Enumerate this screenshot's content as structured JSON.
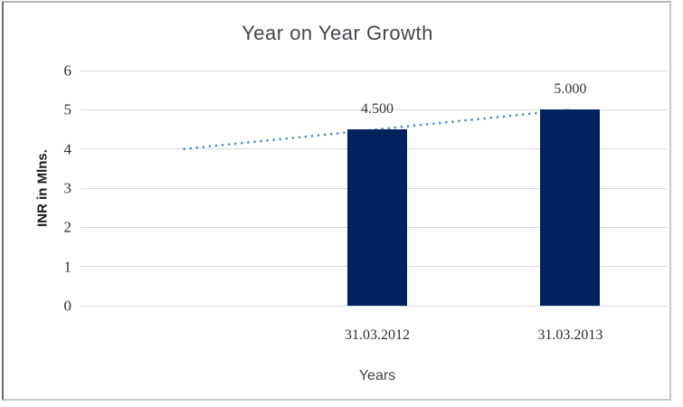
{
  "chart_data": {
    "type": "bar",
    "title": "Year on Year Growth",
    "xlabel": "Years",
    "ylabel": "INR in Mlns.",
    "categories": [
      "31.03.2012",
      "31.03.2013"
    ],
    "values": [
      4.5,
      5.0
    ],
    "data_labels": [
      "4.500",
      "5.000"
    ],
    "slots": 3,
    "bar_slot_indices": [
      1,
      2
    ],
    "ylim": [
      0,
      6
    ],
    "y_ticks": [
      0,
      1,
      2,
      3,
      4,
      5,
      6
    ],
    "grid": "horizontal",
    "legend": "none",
    "bar_color": "#02225e",
    "gridline_color": "#d9d9d9",
    "label_color": "#333333",
    "trendline": {
      "type": "linear",
      "style": "dotted",
      "color": "#4a86c8",
      "start": {
        "slot": 0,
        "value": 4.0
      },
      "end": {
        "slot": 2,
        "value": 5.0
      }
    }
  }
}
